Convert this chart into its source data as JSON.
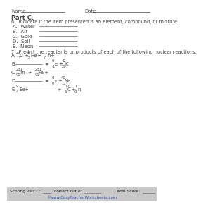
{
  "bg_color": "#ffffff",
  "footer_bg": "#c8c8c8",
  "title": "Part C.",
  "name_label": "Name",
  "date_label": "Date",
  "q6_text": "6.  Indicate if the item presented is an element, compound, or mixture.",
  "q6_items": [
    "A.  Water",
    "B.  Air",
    "C.  Gold",
    "D.  Soil",
    "E.  Neon"
  ],
  "q7_text": "7.  Predict the reactants or products of each of the following nuclear reactions.",
  "footer_text": "Scoring Part C:  ____  correct out of  ________",
  "footer_score": "Total Score:  ______",
  "website": "©www.EasyTeacherWorksheets.com",
  "text_color": "#444444",
  "footer_text_color": "#222222",
  "website_color": "#3355aa"
}
